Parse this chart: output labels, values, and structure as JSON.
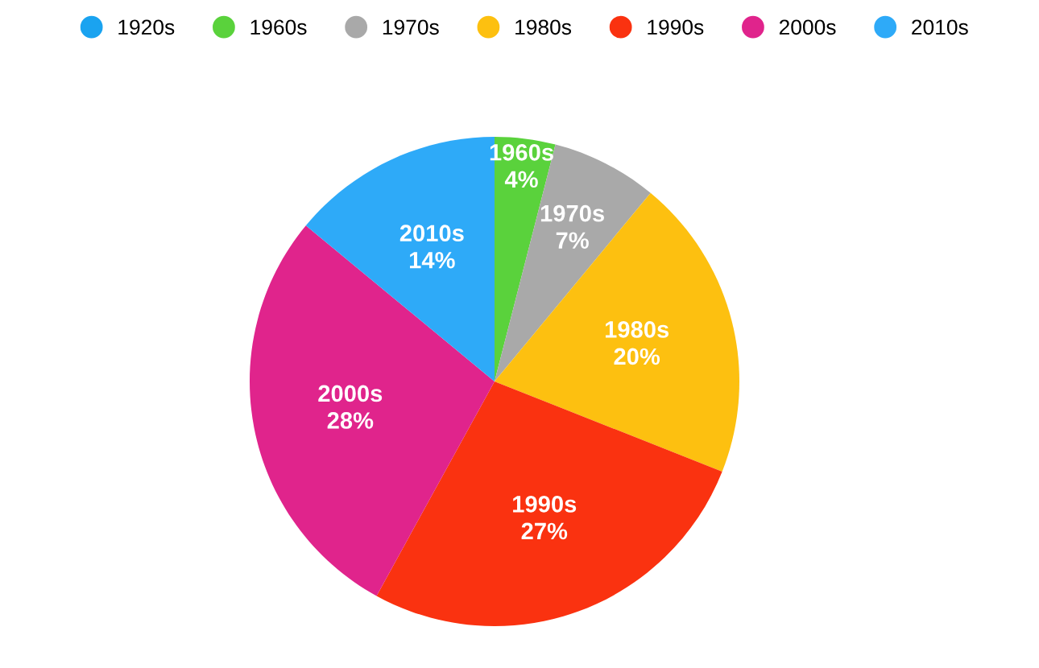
{
  "chart_data": {
    "type": "pie",
    "categories": [
      "1920s",
      "1960s",
      "1970s",
      "1980s",
      "1990s",
      "2000s",
      "2010s"
    ],
    "values": [
      0,
      4,
      7,
      20,
      27,
      28,
      14
    ],
    "value_labels": [
      null,
      "4%",
      "7%",
      "20%",
      "27%",
      "28%",
      "14%"
    ],
    "colors": [
      "#1aa3f0",
      "#5ad23c",
      "#a9a9a9",
      "#fdc010",
      "#fa3210",
      "#e0248c",
      "#2eaaf8"
    ],
    "legend": "top"
  }
}
